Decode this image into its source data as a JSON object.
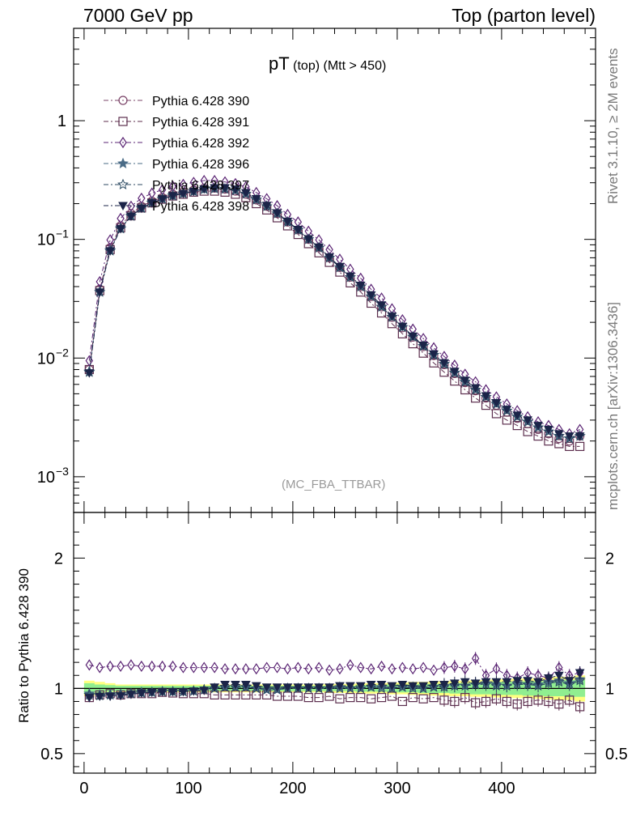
{
  "header": {
    "left": "7000 GeV pp",
    "right": "Top (parton level)"
  },
  "side_labels": {
    "rivet": "Rivet 3.1.10, ≥ 2M events",
    "mcplots": "mcplots.cern.ch [arXiv:1306.3436]"
  },
  "main_plot": {
    "title_main": "pT",
    "title_small": "(top) (Mtt > 450)",
    "watermark": "(MC_FBA_TTBAR)"
  },
  "ratio_plot": {
    "ylabel": "Ratio to Pythia 6.428 390"
  },
  "colors": {
    "390": "#7b4468",
    "391": "#5c2e4e",
    "392": "#5b2574",
    "396": "#4a6b86",
    "397": "#2c4a62",
    "398": "#1b2448",
    "band_green": "#90ee90",
    "band_yellow": "#ffff80"
  },
  "chart_data": [
    {
      "type": "scatter",
      "scale": "log",
      "xlim": [
        -10,
        490
      ],
      "ylim": [
        0.0005,
        6
      ],
      "ytick_labels": [
        "10^-3",
        "10^-2",
        "10^-1",
        "1"
      ],
      "xtick_labels": [
        "0",
        "100",
        "200",
        "300",
        "400"
      ],
      "legend_position": "top-left",
      "x": [
        5,
        15,
        25,
        35,
        45,
        55,
        65,
        75,
        85,
        95,
        105,
        115,
        125,
        135,
        145,
        155,
        165,
        175,
        185,
        195,
        205,
        215,
        225,
        235,
        245,
        255,
        265,
        275,
        285,
        295,
        305,
        315,
        325,
        335,
        345,
        355,
        365,
        375,
        385,
        395,
        405,
        415,
        425,
        435,
        445,
        455,
        465,
        475
      ],
      "series": [
        {
          "name": "Pythia 6.428 390",
          "marker": "circle-open",
          "values": [
            0.008,
            0.038,
            0.085,
            0.13,
            0.165,
            0.19,
            0.21,
            0.225,
            0.24,
            0.25,
            0.26,
            0.27,
            0.27,
            0.265,
            0.255,
            0.24,
            0.215,
            0.19,
            0.165,
            0.14,
            0.12,
            0.1,
            0.085,
            0.07,
            0.058,
            0.048,
            0.04,
            0.033,
            0.027,
            0.022,
            0.018,
            0.015,
            0.0125,
            0.0105,
            0.0088,
            0.0074,
            0.0062,
            0.0053,
            0.0046,
            0.004,
            0.0035,
            0.0031,
            0.0028,
            0.0025,
            0.0023,
            0.0021,
            0.002,
            0.0022
          ]
        },
        {
          "name": "Pythia 6.428 391",
          "marker": "square-open",
          "values": [
            0.008,
            0.037,
            0.082,
            0.125,
            0.158,
            0.184,
            0.203,
            0.218,
            0.232,
            0.24,
            0.25,
            0.255,
            0.255,
            0.25,
            0.24,
            0.225,
            0.2,
            0.177,
            0.152,
            0.13,
            0.11,
            0.092,
            0.077,
            0.064,
            0.053,
            0.043,
            0.036,
            0.029,
            0.024,
            0.0195,
            0.016,
            0.0132,
            0.011,
            0.0091,
            0.0076,
            0.0064,
            0.0054,
            0.0046,
            0.004,
            0.0034,
            0.003,
            0.0027,
            0.0024,
            0.0022,
            0.002,
            0.0019,
            0.0018,
            0.0018
          ]
        },
        {
          "name": "Pythia 6.428 392",
          "marker": "diamond-open",
          "values": [
            0.0095,
            0.044,
            0.099,
            0.15,
            0.19,
            0.222,
            0.245,
            0.262,
            0.28,
            0.29,
            0.302,
            0.313,
            0.313,
            0.305,
            0.295,
            0.277,
            0.248,
            0.22,
            0.192,
            0.162,
            0.14,
            0.117,
            0.099,
            0.082,
            0.068,
            0.056,
            0.047,
            0.038,
            0.032,
            0.026,
            0.021,
            0.0175,
            0.0146,
            0.0122,
            0.0103,
            0.0087,
            0.0073,
            0.0063,
            0.0054,
            0.0047,
            0.0041,
            0.0036,
            0.0032,
            0.0029,
            0.0027,
            0.0025,
            0.0023,
            0.0025
          ]
        },
        {
          "name": "Pythia 6.428 396",
          "marker": "star-filled",
          "values": [
            0.0077,
            0.036,
            0.081,
            0.124,
            0.158,
            0.184,
            0.204,
            0.22,
            0.234,
            0.244,
            0.254,
            0.265,
            0.268,
            0.266,
            0.258,
            0.242,
            0.216,
            0.19,
            0.165,
            0.14,
            0.12,
            0.1,
            0.085,
            0.07,
            0.058,
            0.048,
            0.04,
            0.033,
            0.027,
            0.0222,
            0.0182,
            0.0151,
            0.0126,
            0.0106,
            0.0089,
            0.0075,
            0.0063,
            0.0054,
            0.0047,
            0.0041,
            0.0036,
            0.0032,
            0.0029,
            0.0026,
            0.0024,
            0.0022,
            0.0021,
            0.0022
          ]
        },
        {
          "name": "Pythia 6.428 397",
          "marker": "star-open",
          "values": [
            0.0076,
            0.036,
            0.08,
            0.123,
            0.157,
            0.183,
            0.203,
            0.219,
            0.233,
            0.243,
            0.253,
            0.264,
            0.268,
            0.266,
            0.258,
            0.242,
            0.216,
            0.19,
            0.165,
            0.14,
            0.12,
            0.1,
            0.085,
            0.07,
            0.058,
            0.048,
            0.04,
            0.033,
            0.027,
            0.0222,
            0.0182,
            0.0151,
            0.0126,
            0.0106,
            0.0089,
            0.0075,
            0.0063,
            0.0054,
            0.0047,
            0.0041,
            0.0036,
            0.0032,
            0.0029,
            0.0026,
            0.0024,
            0.0022,
            0.0021,
            0.0022
          ]
        },
        {
          "name": "Pythia 6.428 398",
          "marker": "triangle-down-filled",
          "values": [
            0.0075,
            0.036,
            0.08,
            0.123,
            0.157,
            0.183,
            0.203,
            0.219,
            0.233,
            0.243,
            0.254,
            0.266,
            0.272,
            0.272,
            0.264,
            0.247,
            0.22,
            0.193,
            0.167,
            0.142,
            0.121,
            0.101,
            0.086,
            0.071,
            0.059,
            0.049,
            0.041,
            0.034,
            0.028,
            0.0225,
            0.0185,
            0.0153,
            0.0128,
            0.0108,
            0.0091,
            0.0077,
            0.0065,
            0.0056,
            0.0048,
            0.0042,
            0.0037,
            0.0033,
            0.003,
            0.0027,
            0.0025,
            0.0023,
            0.0022,
            0.0022
          ]
        }
      ]
    },
    {
      "type": "scatter",
      "ylabel": "Ratio to Pythia 6.428 390",
      "xlim": [
        -10,
        490
      ],
      "ylim": [
        0.35,
        2.35
      ],
      "ytick_labels": [
        "0.5",
        "1",
        "2"
      ],
      "xtick_labels": [
        "0",
        "100",
        "200",
        "300",
        "400"
      ],
      "x": [
        5,
        15,
        25,
        35,
        45,
        55,
        65,
        75,
        85,
        95,
        105,
        115,
        125,
        135,
        145,
        155,
        165,
        175,
        185,
        195,
        205,
        215,
        225,
        235,
        245,
        255,
        265,
        275,
        285,
        295,
        305,
        315,
        325,
        335,
        345,
        355,
        365,
        375,
        385,
        395,
        405,
        415,
        425,
        435,
        445,
        455,
        465,
        475
      ],
      "band": {
        "green_halfwidth": [
          0.04,
          0.03,
          0.025,
          0.02,
          0.02,
          0.02,
          0.02,
          0.02,
          0.02,
          0.02,
          0.02,
          0.02,
          0.02,
          0.02,
          0.02,
          0.02,
          0.02,
          0.02,
          0.02,
          0.02,
          0.02,
          0.02,
          0.02,
          0.02,
          0.02,
          0.02,
          0.025,
          0.025,
          0.025,
          0.03,
          0.03,
          0.03,
          0.035,
          0.035,
          0.035,
          0.04,
          0.04,
          0.045,
          0.045,
          0.05,
          0.05,
          0.05,
          0.055,
          0.055,
          0.06,
          0.06,
          0.065,
          0.065
        ],
        "yellow_halfwidth": [
          0.06,
          0.05,
          0.04,
          0.03,
          0.03,
          0.03,
          0.03,
          0.03,
          0.03,
          0.03,
          0.03,
          0.03,
          0.03,
          0.03,
          0.03,
          0.03,
          0.03,
          0.03,
          0.03,
          0.03,
          0.03,
          0.03,
          0.03,
          0.035,
          0.035,
          0.035,
          0.04,
          0.04,
          0.04,
          0.045,
          0.045,
          0.05,
          0.05,
          0.055,
          0.055,
          0.06,
          0.06,
          0.065,
          0.065,
          0.07,
          0.07,
          0.075,
          0.075,
          0.08,
          0.085,
          0.09,
          0.09,
          0.1
        ]
      },
      "series": [
        {
          "name": "Pythia 6.428 391",
          "marker": "square-open",
          "values": [
            0.93,
            0.95,
            0.96,
            0.95,
            0.96,
            0.96,
            0.96,
            0.97,
            0.965,
            0.96,
            0.96,
            0.96,
            0.95,
            0.95,
            0.95,
            0.95,
            0.95,
            0.95,
            0.94,
            0.94,
            0.94,
            0.93,
            0.93,
            0.94,
            0.92,
            0.93,
            0.93,
            0.92,
            0.93,
            0.94,
            0.9,
            0.93,
            0.92,
            0.93,
            0.91,
            0.9,
            0.93,
            0.89,
            0.9,
            0.92,
            0.9,
            0.88,
            0.9,
            0.91,
            0.9,
            0.88,
            0.91,
            0.86
          ]
        },
        {
          "name": "Pythia 6.428 392",
          "marker": "diamond-open",
          "values": [
            1.18,
            1.16,
            1.17,
            1.17,
            1.18,
            1.17,
            1.17,
            1.17,
            1.17,
            1.16,
            1.16,
            1.16,
            1.16,
            1.15,
            1.15,
            1.15,
            1.15,
            1.16,
            1.16,
            1.15,
            1.16,
            1.15,
            1.16,
            1.14,
            1.15,
            1.18,
            1.16,
            1.15,
            1.17,
            1.15,
            1.16,
            1.15,
            1.16,
            1.14,
            1.16,
            1.17,
            1.15,
            1.23,
            1.1,
            1.15,
            1.1,
            1.08,
            1.12,
            1.1,
            1.08,
            1.16,
            1.1,
            1.12
          ]
        },
        {
          "name": "Pythia 6.428 396",
          "marker": "star-filled",
          "values": [
            0.96,
            0.95,
            0.955,
            0.955,
            0.96,
            0.97,
            0.97,
            0.975,
            0.975,
            0.975,
            0.98,
            0.99,
            1.0,
            1.01,
            1.01,
            1.01,
            1.0,
            0.99,
            0.99,
            1.0,
            1.0,
            1.0,
            1.0,
            1.0,
            1.01,
            1.0,
            1.0,
            1.01,
            1.01,
            1.0,
            1.01,
            1.01,
            1.0,
            1.01,
            1.02,
            1.02,
            1.02,
            1.03,
            1.04,
            1.03,
            1.02,
            1.04,
            1.03,
            1.03,
            1.05,
            1.06,
            1.04,
            1.07
          ]
        },
        {
          "name": "Pythia 6.428 397",
          "marker": "star-open",
          "values": [
            0.95,
            0.945,
            0.95,
            0.955,
            0.96,
            0.965,
            0.97,
            0.975,
            0.975,
            0.975,
            0.98,
            0.99,
            1.0,
            1.01,
            1.01,
            1.01,
            1.0,
            0.99,
            0.99,
            1.0,
            1.0,
            1.0,
            1.0,
            1.0,
            1.0,
            1.0,
            1.0,
            1.01,
            1.0,
            1.0,
            1.01,
            1.0,
            1.0,
            1.01,
            1.01,
            1.02,
            1.02,
            1.03,
            1.03,
            1.02,
            1.02,
            1.03,
            1.03,
            1.02,
            1.04,
            1.05,
            1.03,
            1.06
          ]
        },
        {
          "name": "Pythia 6.428 398",
          "marker": "triangle-down-filled",
          "values": [
            0.93,
            0.94,
            0.94,
            0.945,
            0.955,
            0.965,
            0.97,
            0.975,
            0.975,
            0.975,
            0.98,
            0.985,
            1.01,
            1.03,
            1.03,
            1.03,
            1.02,
            1.01,
            1.01,
            1.01,
            1.01,
            1.01,
            1.01,
            1.01,
            1.02,
            1.02,
            1.02,
            1.03,
            1.03,
            1.02,
            1.03,
            1.02,
            1.02,
            1.03,
            1.03,
            1.04,
            1.05,
            1.04,
            1.05,
            1.05,
            1.05,
            1.06,
            1.06,
            1.05,
            1.08,
            1.1,
            1.06,
            1.12
          ]
        }
      ]
    }
  ]
}
